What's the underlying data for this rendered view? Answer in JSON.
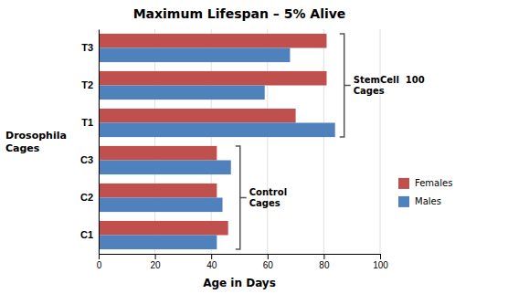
{
  "chart_data": {
    "type": "bar",
    "orientation": "horizontal",
    "title": "Maximum Lifespan – 5% Alive",
    "xlabel": "Age in Days",
    "ylabel": "Drosophila\nCages",
    "categories": [
      "C1",
      "C2",
      "C3",
      "T1",
      "T2",
      "T3"
    ],
    "series": [
      {
        "name": "Females",
        "color": "#c0504d",
        "values": [
          46,
          42,
          42,
          70,
          81,
          81
        ]
      },
      {
        "name": "Males",
        "color": "#4f81bd",
        "values": [
          42,
          44,
          47,
          84,
          59,
          68
        ]
      }
    ],
    "xlim": [
      0,
      100
    ],
    "xticks": [
      0,
      20,
      40,
      60,
      80,
      100
    ],
    "grid": true,
    "legend": "right",
    "annotations": [
      {
        "text": "StemCell  100\nCages",
        "categories": [
          "T1",
          "T2",
          "T3"
        ]
      },
      {
        "text": "Control\nCages",
        "categories": [
          "C1",
          "C2",
          "C3"
        ]
      }
    ]
  }
}
